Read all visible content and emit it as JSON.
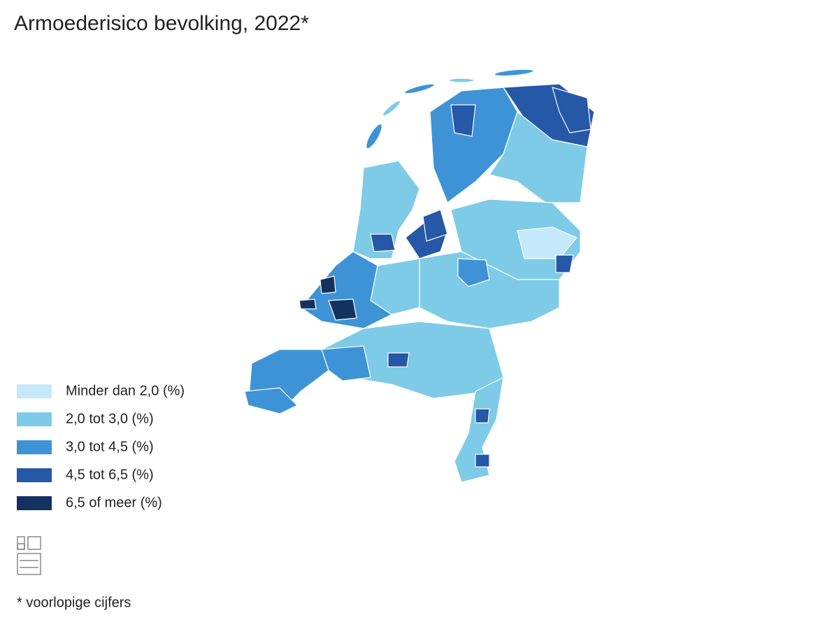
{
  "title": "Armoederisico bevolking, 2022*",
  "legend": [
    {
      "label": "Minder dan 2,0 (%)",
      "color": "#c6e8fb"
    },
    {
      "label": "2,0 tot 3,0 (%)",
      "color": "#7ecbe7"
    },
    {
      "label": "3,0 tot 4,5 (%)",
      "color": "#3e93d6"
    },
    {
      "label": "4,5 tot 6,5 (%)",
      "color": "#2558a6"
    },
    {
      "label": "6,5 of meer (%)",
      "color": "#13325f"
    }
  ],
  "footnote": "* voorlopige cijfers"
}
